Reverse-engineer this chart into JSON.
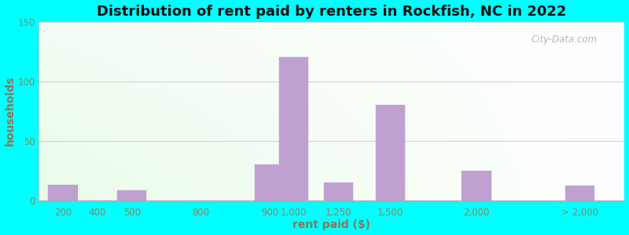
{
  "title": "Distribution of rent paid by renters in Rockfish, NC in 2022",
  "xlabel": "rent paid ($)",
  "ylabel": "households",
  "categories": [
    "200",
    "400",
    "500",
    "800",
    "900",
    "1,000",
    "1,250",
    "1,500",
    "2,000",
    "> 2,000"
  ],
  "values": [
    13,
    0,
    8,
    0,
    30,
    120,
    15,
    80,
    25,
    12
  ],
  "bar_color": "#c0a0d0",
  "bar_edge_color": "#c0a0d0",
  "ylim": [
    0,
    150
  ],
  "yticks": [
    0,
    50,
    100,
    150
  ],
  "background_outer": "#00ffff",
  "grid_color": "#e8c8d8",
  "title_fontsize": 13,
  "axis_label_fontsize": 10,
  "tick_fontsize": 8.5,
  "watermark_text": "City-Data.com",
  "tick_color": "#888866",
  "label_color": "#887755",
  "title_color": "#111111"
}
